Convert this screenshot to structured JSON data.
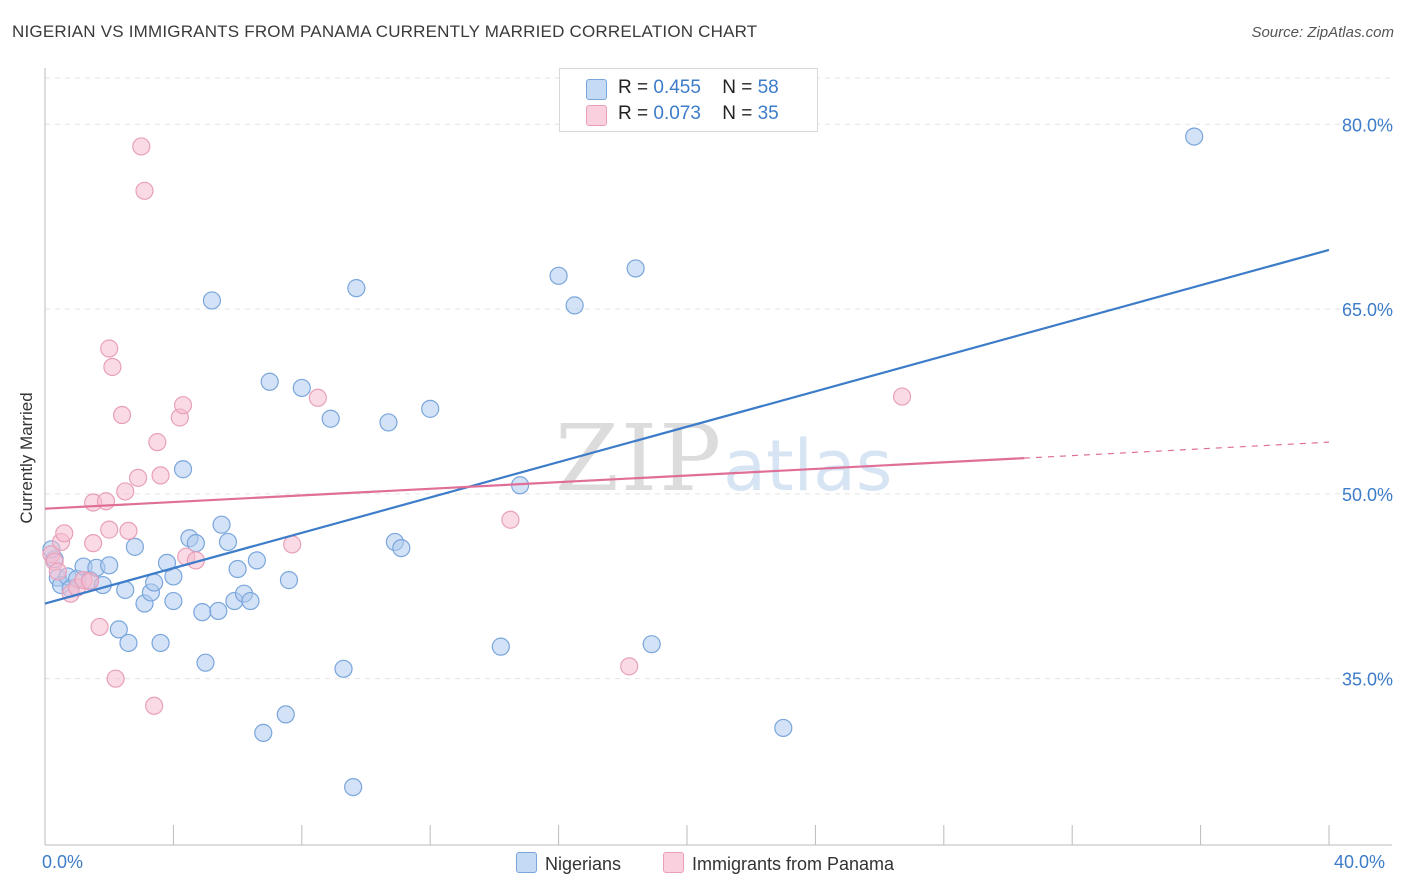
{
  "title": "NIGERIAN VS IMMIGRANTS FROM PANAMA CURRENTLY MARRIED CORRELATION CHART",
  "source": "Source: ZipAtlas.com",
  "watermark": {
    "zip": "ZIP",
    "atlas": "atlas"
  },
  "colors": {
    "blue": "#3d7cc9",
    "blue_fill": "#aecbef",
    "pink": "#e06f98",
    "pink_fill": "#f6bccf",
    "grid": "#e3e3e3",
    "axis_text": "#3d7cc9"
  },
  "legend": {
    "rows": [
      {
        "r_label": "R = ",
        "r_value": "0.455",
        "n_label": "N = ",
        "n_value": "58"
      },
      {
        "r_label": "R = ",
        "r_value": "0.073",
        "n_label": "N = ",
        "n_value": "35"
      }
    ]
  },
  "chart_data": {
    "type": "scatter",
    "title": "NIGERIAN VS IMMIGRANTS FROM PANAMA CURRENTLY MARRIED CORRELATION CHART",
    "xlabel": "",
    "ylabel": "Currently Married",
    "xlim": [
      0,
      40
    ],
    "ylim": [
      21.5,
      84
    ],
    "x_tick_labels": [
      "0.0%",
      "40.0%"
    ],
    "y_ticks": [
      35,
      50,
      65,
      80
    ],
    "y_tick_labels": [
      "35.0%",
      "50.0%",
      "65.0%",
      "80.0%"
    ],
    "grid": true,
    "legend_placement": "top-center",
    "series": [
      {
        "name": "Nigerians",
        "color": "#3d7cc9",
        "trend": {
          "x": [
            0,
            40
          ],
          "y": [
            41.1,
            69.8
          ]
        },
        "points": [
          [
            0.3,
            44.7
          ],
          [
            0.4,
            43.2
          ],
          [
            0.5,
            42.6
          ],
          [
            0.7,
            43.3
          ],
          [
            0.8,
            42.3
          ],
          [
            1.0,
            43.1
          ],
          [
            1.2,
            44.1
          ],
          [
            1.4,
            43.0
          ],
          [
            1.6,
            44.0
          ],
          [
            1.8,
            42.6
          ],
          [
            2.0,
            44.2
          ],
          [
            2.3,
            39.0
          ],
          [
            2.5,
            42.2
          ],
          [
            2.6,
            37.9
          ],
          [
            2.8,
            45.7
          ],
          [
            3.1,
            41.1
          ],
          [
            3.3,
            42.0
          ],
          [
            3.4,
            42.8
          ],
          [
            3.6,
            37.9
          ],
          [
            3.8,
            44.4
          ],
          [
            4.0,
            43.3
          ],
          [
            4.0,
            41.3
          ],
          [
            4.3,
            52.0
          ],
          [
            4.5,
            46.4
          ],
          [
            4.7,
            46.0
          ],
          [
            4.9,
            40.4
          ],
          [
            5.0,
            36.3
          ],
          [
            5.2,
            65.7
          ],
          [
            5.4,
            40.5
          ],
          [
            5.5,
            47.5
          ],
          [
            5.7,
            46.1
          ],
          [
            5.9,
            41.3
          ],
          [
            6.0,
            43.9
          ],
          [
            6.2,
            41.9
          ],
          [
            6.4,
            41.3
          ],
          [
            6.6,
            44.6
          ],
          [
            6.8,
            30.6
          ],
          [
            7.0,
            59.1
          ],
          [
            7.5,
            32.1
          ],
          [
            7.6,
            43.0
          ],
          [
            8.0,
            58.6
          ],
          [
            8.9,
            56.1
          ],
          [
            9.3,
            35.8
          ],
          [
            9.6,
            26.2
          ],
          [
            9.7,
            66.7
          ],
          [
            10.7,
            55.8
          ],
          [
            10.9,
            46.1
          ],
          [
            11.1,
            45.6
          ],
          [
            12.0,
            56.9
          ],
          [
            14.2,
            37.6
          ],
          [
            14.8,
            50.7
          ],
          [
            16.0,
            67.7
          ],
          [
            16.5,
            65.3
          ],
          [
            18.4,
            68.3
          ],
          [
            18.9,
            37.8
          ],
          [
            23.0,
            31.0
          ],
          [
            35.8,
            79.0
          ],
          [
            0.2,
            45.5
          ]
        ]
      },
      {
        "name": "Immigrants from Panama",
        "color": "#e06f98",
        "trend": {
          "x": [
            0,
            30.5
          ],
          "y": [
            48.8,
            52.9
          ],
          "dash_to": [
            40,
            54.2
          ]
        },
        "points": [
          [
            0.2,
            45.1
          ],
          [
            0.3,
            44.5
          ],
          [
            0.4,
            43.7
          ],
          [
            0.5,
            46.1
          ],
          [
            0.6,
            46.8
          ],
          [
            0.8,
            41.9
          ],
          [
            1.0,
            42.4
          ],
          [
            1.2,
            43.0
          ],
          [
            1.4,
            42.9
          ],
          [
            1.5,
            46.0
          ],
          [
            1.5,
            49.3
          ],
          [
            1.7,
            39.2
          ],
          [
            1.9,
            49.4
          ],
          [
            2.0,
            47.1
          ],
          [
            2.0,
            61.8
          ],
          [
            2.1,
            60.3
          ],
          [
            2.2,
            35.0
          ],
          [
            2.4,
            56.4
          ],
          [
            2.5,
            50.2
          ],
          [
            2.6,
            47.0
          ],
          [
            2.9,
            51.3
          ],
          [
            3.0,
            78.2
          ],
          [
            3.1,
            74.6
          ],
          [
            3.4,
            32.8
          ],
          [
            3.5,
            54.2
          ],
          [
            3.6,
            51.5
          ],
          [
            4.2,
            56.2
          ],
          [
            4.3,
            57.2
          ],
          [
            4.4,
            44.9
          ],
          [
            4.7,
            44.6
          ],
          [
            7.7,
            45.9
          ],
          [
            8.5,
            57.8
          ],
          [
            14.5,
            47.9
          ],
          [
            18.2,
            36.0
          ],
          [
            26.7,
            57.9
          ]
        ]
      }
    ]
  }
}
